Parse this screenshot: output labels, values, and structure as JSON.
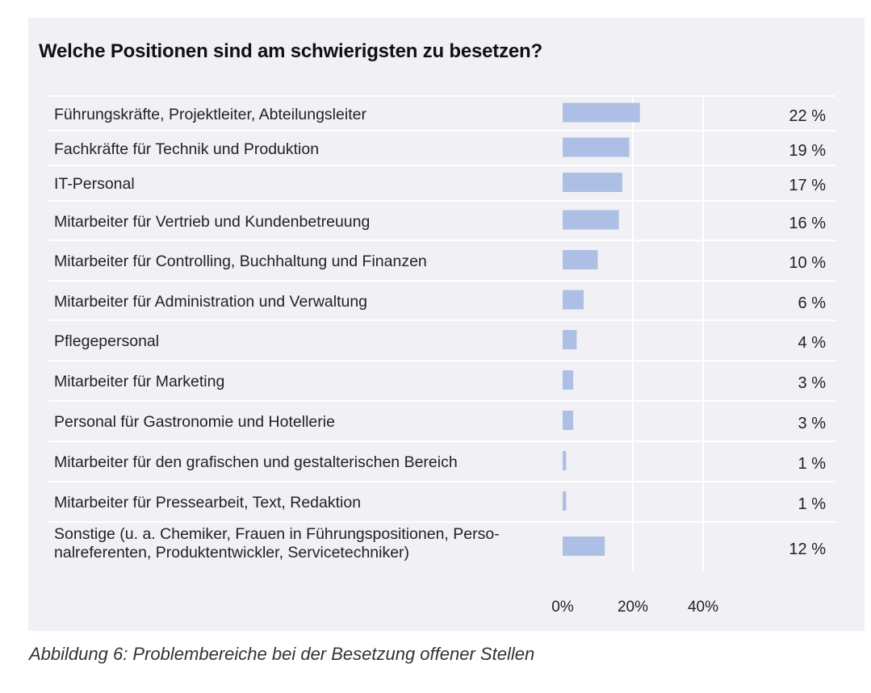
{
  "chart_data": {
    "type": "bar",
    "orientation": "horizontal",
    "title": "Welche Positionen sind am schwierigsten zu besetzen?",
    "categories": [
      "Führungskräfte, Projektleiter, Abteilungsleiter",
      "Fachkräfte für Technik und Produktion",
      "IT-Personal",
      "Mitarbeiter für Vertrieb und Kundenbetreuung",
      "Mitarbeiter für Controlling, Buchhaltung und Finanzen",
      "Mitarbeiter für Administration und Verwaltung",
      "Pflegepersonal",
      "Mitarbeiter für Marketing",
      "Personal für Gastronomie und Hotellerie",
      "Mitarbeiter für den grafischen und gestalterischen Bereich",
      "Mitarbeiter für Pressearbeit, Text, Redaktion",
      "Sonstige (u. a. Chemiker, Frauen in Führungspositionen, Perso-\nnalreferenten, Produktentwickler, Servicetechniker)"
    ],
    "values": [
      22,
      19,
      17,
      16,
      10,
      6,
      4,
      3,
      3,
      1,
      1,
      12
    ],
    "value_labels": [
      "22 %",
      "19 %",
      "17 %",
      "16 %",
      "10 %",
      "6 %",
      "4 %",
      "3 %",
      "3 %",
      "1 %",
      "1 %",
      "12 %"
    ],
    "xlim": [
      0,
      40
    ],
    "x_ticks": [
      0,
      20,
      40
    ],
    "x_tick_labels": [
      "0%",
      "20%",
      "40%"
    ],
    "bar_color": "#aebfe6",
    "grid": true
  },
  "caption": "Abbildung 6: Problembereiche bei der Besetzung offener Stellen"
}
